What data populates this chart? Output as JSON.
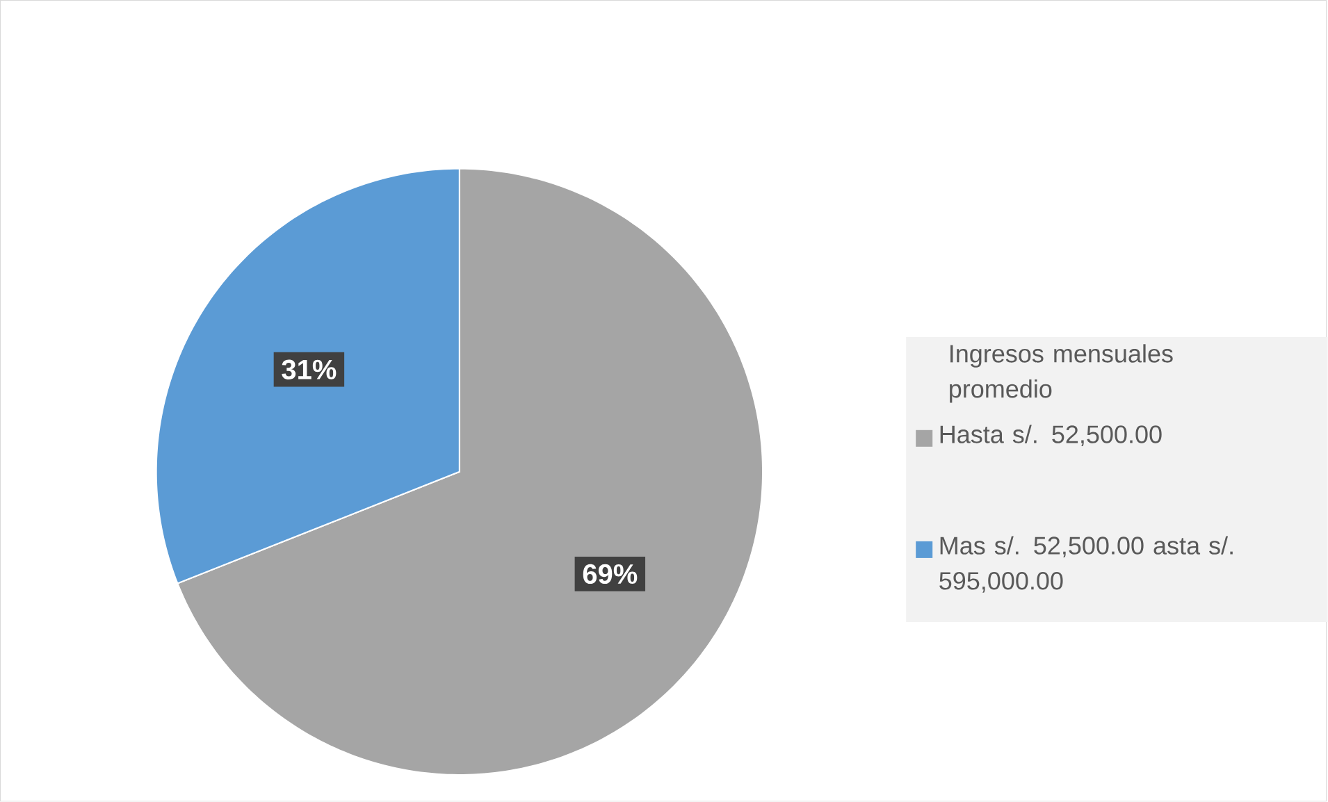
{
  "chart_data": {
    "type": "pie",
    "legend_title": "Ingresos mensuales promedio",
    "categories": [
      "Hasta s/. 52,500.00",
      "Mas s/. 52,500.00 asta s/. 595,000.00"
    ],
    "values": [
      69,
      31
    ],
    "colors": [
      "#a5a5a5",
      "#5b9bd5"
    ],
    "value_labels": [
      "69%",
      "31%"
    ],
    "legend": "right"
  }
}
